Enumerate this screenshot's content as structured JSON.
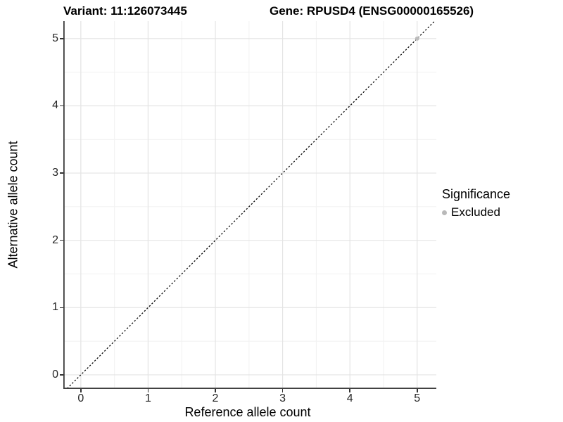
{
  "header": {
    "variant_title": "Variant: 11:126073445",
    "gene_title": "Gene: RPUSD4 (ENSG00000165526)"
  },
  "colors": {
    "grid_major": "#e4e4e4",
    "grid_minor": "#f1f1f1",
    "axis_line": "#3c3c3c",
    "tick_mark": "#333333",
    "reference_line": "#000000",
    "point_excluded": "#bcbcbc"
  },
  "chart_data": {
    "type": "scatter",
    "titles": {
      "left": "Variant: 11:126073445",
      "right": "Gene: RPUSD4 (ENSG00000165526)"
    },
    "xlabel": "Reference allele count",
    "ylabel": "Alternative allele count",
    "x_ticks": [
      0,
      1,
      2,
      3,
      4,
      5
    ],
    "y_ticks": [
      0,
      1,
      2,
      3,
      4,
      5
    ],
    "x_minor_ticks": [
      0.5,
      1.5,
      2.5,
      3.5,
      4.5
    ],
    "y_minor_ticks": [
      0.5,
      1.5,
      2.5,
      3.5,
      4.5
    ],
    "x_domain": [
      -0.26,
      5.285
    ],
    "y_domain": [
      -0.21,
      5.26
    ],
    "grid": "major+minor",
    "legend_position": "right",
    "reference_line": {
      "kind": "identity y=x",
      "dashed": true,
      "color": "#000000"
    },
    "series": [
      {
        "name": "Excluded",
        "color": "#bcbcbc",
        "points": [
          {
            "x": 5,
            "y": 5
          }
        ]
      }
    ],
    "legend": {
      "title": "Significance",
      "items": [
        {
          "label": "Excluded",
          "color": "#b9b9b9"
        }
      ]
    }
  }
}
